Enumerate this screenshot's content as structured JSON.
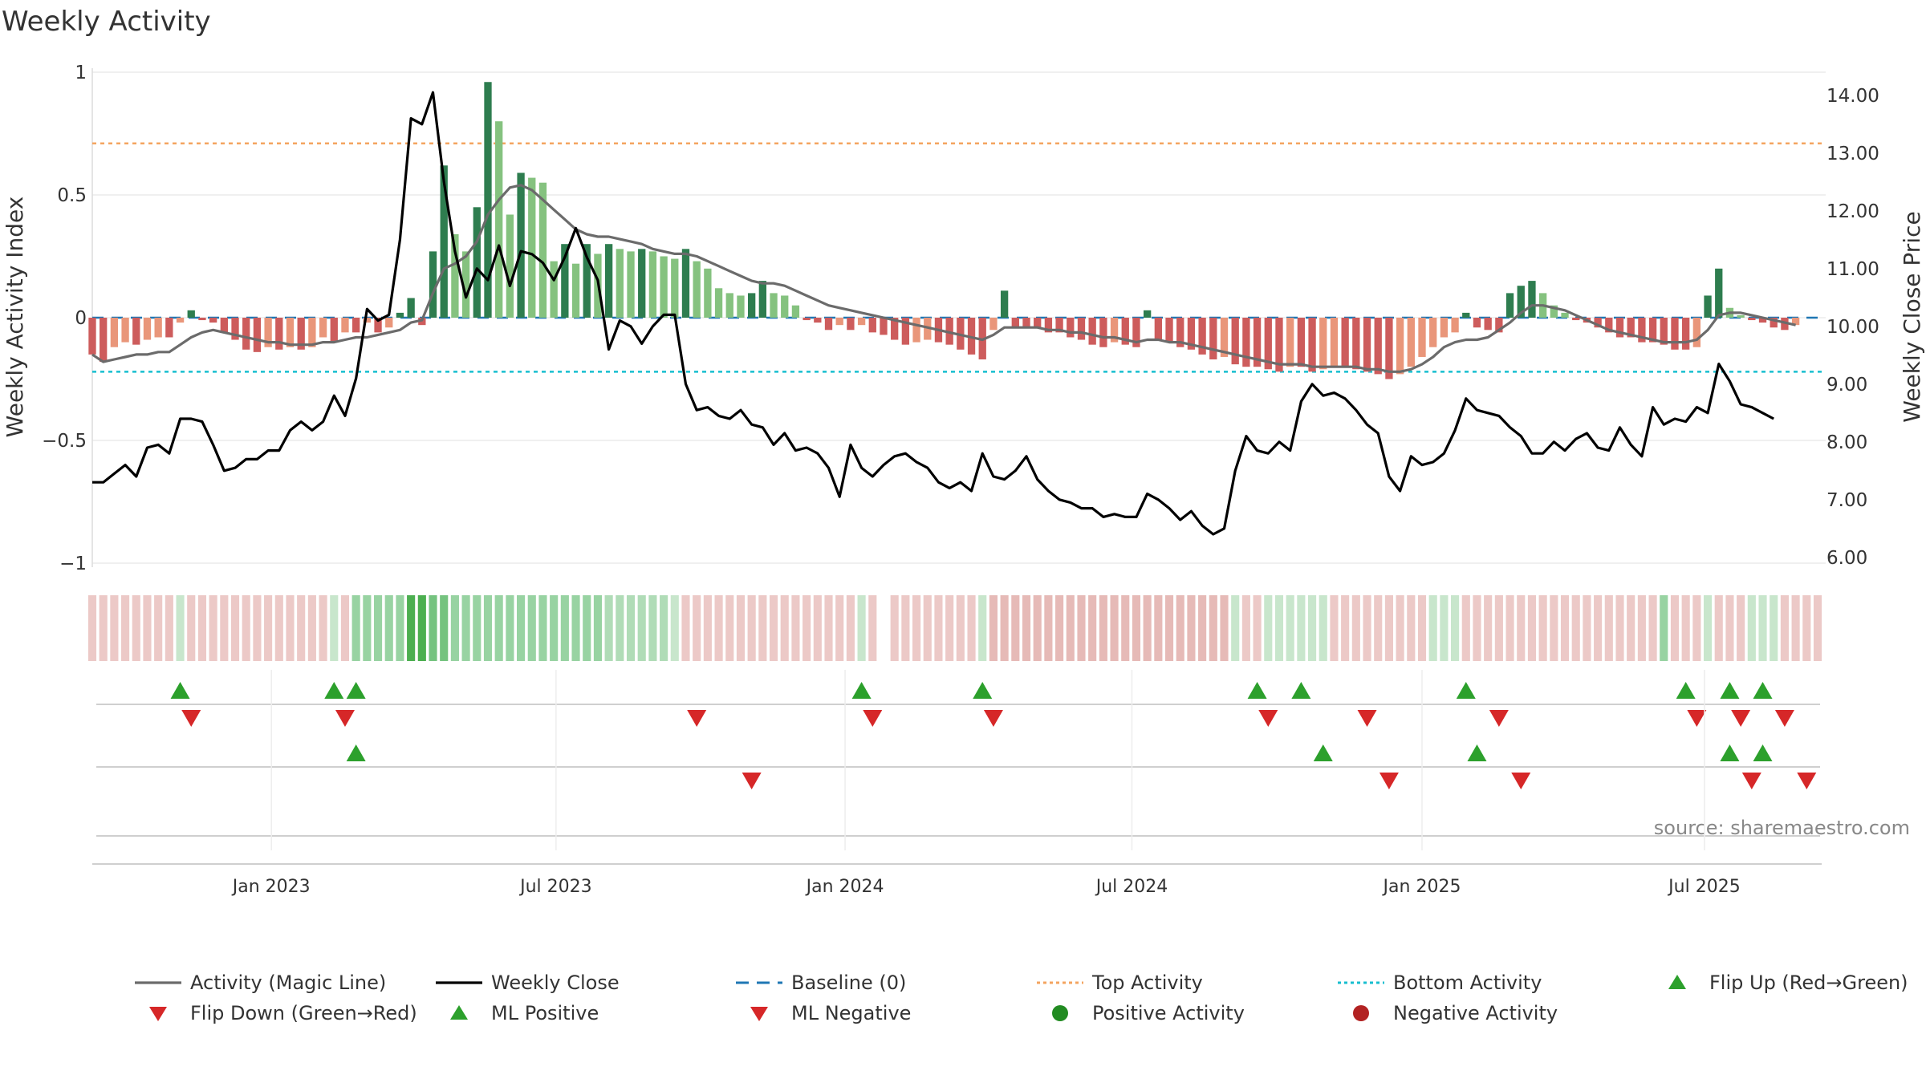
{
  "chart_data": {
    "type": "bar",
    "title": "Weekly Activity",
    "ylabel_left": "Weekly Activity Index",
    "ylabel_right": "Weekly Close Price",
    "xlabel": "",
    "ylim_left": [
      -1.0,
      1.0
    ],
    "ylim_right": [
      5.9,
      14.4
    ],
    "y_ticks_left": [
      {
        "value": 1,
        "label": "1"
      },
      {
        "value": 0.5,
        "label": "0.5"
      },
      {
        "value": 0,
        "label": "0"
      },
      {
        "value": -0.5,
        "label": "−0.5"
      },
      {
        "value": -1,
        "label": "−1"
      }
    ],
    "y_ticks_right": [
      {
        "value": 14,
        "label": "14.00"
      },
      {
        "value": 13,
        "label": "13.00"
      },
      {
        "value": 12,
        "label": "12.00"
      },
      {
        "value": 11,
        "label": "11.00"
      },
      {
        "value": 10,
        "label": "10.00"
      },
      {
        "value": 9,
        "label": "9.00"
      },
      {
        "value": 8,
        "label": "8.00"
      },
      {
        "value": 7,
        "label": "7.00"
      },
      {
        "value": 6,
        "label": "6.00"
      }
    ],
    "x_ticks": [
      {
        "week": 16.3,
        "label": "Jan 2023"
      },
      {
        "week": 42.2,
        "label": "Jul 2023"
      },
      {
        "week": 68.5,
        "label": "Jan 2024"
      },
      {
        "week": 94.6,
        "label": "Jul 2024"
      },
      {
        "week": 121,
        "label": "Jan 2025"
      },
      {
        "week": 146.7,
        "label": "Jul 2025"
      }
    ],
    "weeks": 158,
    "top_activity": 0.71,
    "bottom_activity": -0.22,
    "baseline": 0,
    "activity_values": [
      -0.15,
      -0.18,
      -0.12,
      -0.1,
      -0.11,
      -0.09,
      -0.08,
      -0.08,
      -0.02,
      0.03,
      -0.01,
      -0.02,
      -0.06,
      -0.09,
      -0.13,
      -0.14,
      -0.12,
      -0.13,
      -0.12,
      -0.13,
      -0.12,
      -0.08,
      -0.1,
      -0.06,
      -0.06,
      -0.02,
      -0.06,
      -0.04,
      0.02,
      0.08,
      -0.03,
      0.27,
      0.62,
      0.34,
      0.27,
      0.45,
      0.96,
      0.8,
      0.42,
      0.59,
      0.57,
      0.55,
      0.23,
      0.3,
      0.22,
      0.3,
      0.26,
      0.3,
      0.28,
      0.27,
      0.28,
      0.27,
      0.25,
      0.24,
      0.28,
      0.23,
      0.2,
      0.12,
      0.1,
      0.09,
      0.1,
      0.15,
      0.1,
      0.09,
      0.05,
      -0.01,
      -0.02,
      -0.05,
      -0.03,
      -0.05,
      -0.03,
      -0.06,
      -0.07,
      -0.09,
      -0.11,
      -0.1,
      -0.09,
      -0.1,
      -0.11,
      -0.13,
      -0.15,
      -0.17,
      -0.05,
      0.11,
      -0.04,
      -0.04,
      -0.04,
      -0.06,
      -0.06,
      -0.08,
      -0.09,
      -0.11,
      -0.12,
      -0.1,
      -0.11,
      -0.12,
      0.03,
      -0.09,
      -0.1,
      -0.12,
      -0.13,
      -0.15,
      -0.17,
      -0.16,
      -0.19,
      -0.2,
      -0.2,
      -0.21,
      -0.22,
      -0.2,
      -0.2,
      -0.22,
      -0.21,
      -0.2,
      -0.2,
      -0.21,
      -0.22,
      -0.23,
      -0.25,
      -0.23,
      -0.2,
      -0.16,
      -0.12,
      -0.08,
      -0.06,
      0.02,
      -0.04,
      -0.05,
      -0.06,
      0.1,
      0.13,
      0.15,
      0.1,
      0.05,
      0.02,
      -0.01,
      -0.02,
      -0.04,
      -0.06,
      -0.08,
      -0.08,
      -0.1,
      -0.1,
      -0.11,
      -0.13,
      -0.13,
      -0.12,
      0.09,
      0.2,
      0.04,
      0.01,
      -0.01,
      -0.02,
      -0.04,
      -0.05,
      -0.03
    ],
    "magic_line_values": [
      -0.15,
      -0.18,
      -0.17,
      -0.16,
      -0.15,
      -0.15,
      -0.14,
      -0.14,
      -0.11,
      -0.08,
      -0.06,
      -0.05,
      -0.06,
      -0.07,
      -0.08,
      -0.09,
      -0.1,
      -0.1,
      -0.11,
      -0.11,
      -0.11,
      -0.1,
      -0.1,
      -0.09,
      -0.08,
      -0.08,
      -0.07,
      -0.06,
      -0.05,
      -0.02,
      -0.01,
      0.1,
      0.2,
      0.22,
      0.25,
      0.31,
      0.42,
      0.48,
      0.53,
      0.54,
      0.52,
      0.48,
      0.44,
      0.4,
      0.36,
      0.34,
      0.33,
      0.33,
      0.32,
      0.31,
      0.3,
      0.28,
      0.27,
      0.26,
      0.26,
      0.25,
      0.23,
      0.21,
      0.19,
      0.17,
      0.15,
      0.14,
      0.14,
      0.13,
      0.11,
      0.09,
      0.07,
      0.05,
      0.04,
      0.03,
      0.02,
      0.01,
      0.0,
      -0.01,
      -0.02,
      -0.03,
      -0.04,
      -0.05,
      -0.06,
      -0.07,
      -0.08,
      -0.09,
      -0.07,
      -0.04,
      -0.04,
      -0.04,
      -0.04,
      -0.05,
      -0.05,
      -0.06,
      -0.06,
      -0.07,
      -0.08,
      -0.08,
      -0.09,
      -0.1,
      -0.09,
      -0.09,
      -0.1,
      -0.1,
      -0.11,
      -0.12,
      -0.13,
      -0.14,
      -0.15,
      -0.16,
      -0.17,
      -0.18,
      -0.19,
      -0.19,
      -0.19,
      -0.2,
      -0.2,
      -0.2,
      -0.2,
      -0.2,
      -0.21,
      -0.21,
      -0.22,
      -0.22,
      -0.21,
      -0.19,
      -0.16,
      -0.12,
      -0.1,
      -0.09,
      -0.09,
      -0.08,
      -0.05,
      -0.02,
      0.02,
      0.05,
      0.05,
      0.04,
      0.03,
      0.01,
      -0.01,
      -0.03,
      -0.05,
      -0.06,
      -0.07,
      -0.08,
      -0.09,
      -0.1,
      -0.1,
      -0.1,
      -0.09,
      -0.05,
      0.01,
      0.02,
      0.02,
      0.01,
      0.0,
      -0.01,
      -0.02,
      -0.03
    ],
    "weekly_close_values": [
      7.3,
      7.3,
      7.45,
      7.6,
      7.4,
      7.9,
      7.95,
      7.8,
      8.4,
      8.4,
      8.35,
      7.95,
      7.5,
      7.55,
      7.7,
      7.7,
      7.85,
      7.85,
      8.2,
      8.35,
      8.2,
      8.35,
      8.8,
      8.45,
      9.1,
      10.3,
      10.1,
      10.2,
      11.5,
      13.6,
      13.5,
      14.05,
      12.5,
      11.3,
      10.5,
      11.0,
      10.8,
      11.4,
      10.7,
      11.3,
      11.25,
      11.1,
      10.8,
      11.2,
      11.7,
      11.2,
      10.8,
      9.6,
      10.1,
      10.0,
      9.7,
      10.0,
      10.2,
      10.2,
      9.0,
      8.55,
      8.6,
      8.45,
      8.4,
      8.55,
      8.3,
      8.25,
      7.95,
      8.15,
      7.85,
      7.9,
      7.8,
      7.55,
      7.05,
      7.95,
      7.55,
      7.4,
      7.6,
      7.75,
      7.8,
      7.65,
      7.55,
      7.3,
      7.2,
      7.3,
      7.15,
      7.8,
      7.4,
      7.35,
      7.5,
      7.75,
      7.35,
      7.15,
      7.0,
      6.95,
      6.85,
      6.85,
      6.7,
      6.75,
      6.7,
      6.7,
      7.1,
      7.0,
      6.85,
      6.65,
      6.8,
      6.55,
      6.4,
      6.5,
      7.5,
      8.1,
      7.85,
      7.8,
      8.0,
      7.85,
      8.7,
      9.0,
      8.8,
      8.85,
      8.75,
      8.55,
      8.3,
      8.15,
      7.4,
      7.15,
      7.75,
      7.6,
      7.65,
      7.8,
      8.2,
      8.75,
      8.55,
      8.5,
      8.45,
      8.25,
      8.1,
      7.8,
      7.8,
      8.0,
      7.85,
      8.05,
      8.15,
      7.9,
      7.85,
      8.25,
      7.95,
      7.75,
      8.6,
      8.3,
      8.4,
      8.35,
      8.6,
      8.5,
      9.35,
      9.05,
      8.65,
      8.6,
      8.5,
      8.4
    ],
    "ribbon_colors": [
      "#ecc9c7",
      "#ecc9c7",
      "#ecc9c7",
      "#ecc9c7",
      "#ecc9c7",
      "#ecc9c7",
      "#ecc9c7",
      "#ecc9c7",
      "#c8e6cc",
      "#ecc9c7",
      "#ecc9c7",
      "#ecc9c7",
      "#ecc9c7",
      "#ecc9c7",
      "#ecc9c7",
      "#ecc9c7",
      "#ecc9c7",
      "#ecc9c7",
      "#ecc9c7",
      "#ecc9c7",
      "#ecc9c7",
      "#ecc9c7",
      "#c8e6cc",
      "#ecc9c7",
      "#98d3a2",
      "#98d3a2",
      "#98d3a2",
      "#98d3a2",
      "#98d3a2",
      "#4caf50",
      "#4caf50",
      "#75c37f",
      "#75c37f",
      "#98d3a2",
      "#98d3a2",
      "#98d3a2",
      "#98d3a2",
      "#98d3a2",
      "#98d3a2",
      "#98d3a2",
      "#98d3a2",
      "#98d3a2",
      "#98d3a2",
      "#98d3a2",
      "#98d3a2",
      "#98d3a2",
      "#98d3a2",
      "#b0dcb7",
      "#b0dcb7",
      "#b0dcb7",
      "#b0dcb7",
      "#b0dcb7",
      "#b0dcb7",
      "#c8e6cc",
      "#ecc9c7",
      "#ecc9c7",
      "#ecc9c7",
      "#ecc9c7",
      "#ecc9c7",
      "#ecc9c7",
      "#ecc9c7",
      "#ecc9c7",
      "#ecc9c7",
      "#ecc9c7",
      "#ecc9c7",
      "#ecc9c7",
      "#ecc9c7",
      "#ecc9c7",
      "#ecc9c7",
      "#ecc9c7",
      "#c8e6cc",
      "#ecc9c7",
      "#ffffff",
      "#ecc9c7",
      "#ecc9c7",
      "#ecc9c7",
      "#ecc9c7",
      "#ecc9c7",
      "#ecc9c7",
      "#ecc9c7",
      "#ecc9c7",
      "#c8e6cc",
      "#e6bab7",
      "#e6bab7",
      "#e6bab7",
      "#e6bab7",
      "#e6bab7",
      "#e6bab7",
      "#e6bab7",
      "#e6bab7",
      "#e6bab7",
      "#e6bab7",
      "#e6bab7",
      "#e6bab7",
      "#e6bab7",
      "#e6bab7",
      "#e6bab7",
      "#e6bab7",
      "#e6bab7",
      "#e6bab7",
      "#e6bab7",
      "#e6bab7",
      "#e6bab7",
      "#e6bab7",
      "#c8e6cc",
      "#ecc9c7",
      "#ecc9c7",
      "#c8e6cc",
      "#c8e6cc",
      "#c8e6cc",
      "#c8e6cc",
      "#c8e6cc",
      "#c8e6cc",
      "#ecc9c7",
      "#ecc9c7",
      "#ecc9c7",
      "#ecc9c7",
      "#ecc9c7",
      "#ecc9c7",
      "#ecc9c7",
      "#ecc9c7",
      "#ecc9c7",
      "#c8e6cc",
      "#c8e6cc",
      "#c8e6cc",
      "#ecc9c7",
      "#ecc9c7",
      "#ecc9c7",
      "#ecc9c7",
      "#ecc9c7",
      "#ecc9c7",
      "#ecc9c7",
      "#ecc9c7",
      "#ecc9c7",
      "#ecc9c7",
      "#ecc9c7",
      "#ecc9c7",
      "#ecc9c7",
      "#ecc9c7",
      "#ecc9c7",
      "#ecc9c7",
      "#ecc9c7",
      "#ecc9c7",
      "#98d3a2",
      "#ecc9c7",
      "#ecc9c7",
      "#ecc9c7",
      "#c8e6cc",
      "#ecc9c7",
      "#ecc9c7",
      "#ecc9c7",
      "#c8e6cc",
      "#c8e6cc",
      "#c8e6cc",
      "#ecc9c7",
      "#ecc9c7",
      "#ecc9c7",
      "#ecc9c7"
    ],
    "flip_up_weeks": [
      8,
      22,
      24,
      70,
      81,
      106,
      110,
      125,
      145,
      149,
      152
    ],
    "flip_down_weeks": [
      9,
      23,
      55,
      71,
      82,
      107,
      116,
      128,
      146,
      150,
      154
    ],
    "ml_positive_weeks": [
      24,
      112,
      126,
      149,
      152
    ],
    "ml_negative_weeks": [
      60,
      118,
      130,
      151,
      156
    ],
    "legend": [
      {
        "key": "activity-magic-line",
        "label": "Activity (Magic Line)",
        "symbol": "line",
        "color": "#6b6b6b"
      },
      {
        "key": "weekly-close",
        "label": "Weekly Close",
        "symbol": "line",
        "color": "#000000"
      },
      {
        "key": "baseline",
        "label": "Baseline (0)",
        "symbol": "dash",
        "color": "#1f77b4"
      },
      {
        "key": "top-activity",
        "label": "Top Activity",
        "symbol": "dot-line",
        "color": "#f4a460"
      },
      {
        "key": "bottom-activity",
        "label": "Bottom Activity",
        "symbol": "dot-line",
        "color": "#17becf"
      },
      {
        "key": "flip-up",
        "label": "Flip Up (Red→Green)",
        "symbol": "triangle-up",
        "color": "#2ca02c"
      },
      {
        "key": "flip-down",
        "label": "Flip Down (Green→Red)",
        "symbol": "triangle-down",
        "color": "#d62728"
      },
      {
        "key": "ml-positive",
        "label": "ML Positive",
        "symbol": "triangle-up",
        "color": "#2ca02c"
      },
      {
        "key": "ml-negative",
        "label": "ML Negative",
        "symbol": "triangle-down",
        "color": "#d62728"
      },
      {
        "key": "positive-activity",
        "label": "Positive Activity",
        "symbol": "circle",
        "color": "#228b22"
      },
      {
        "key": "negative-activity",
        "label": "Negative Activity",
        "symbol": "circle",
        "color": "#b22222"
      }
    ],
    "colors": {
      "positive_strong": "#2e7d4f",
      "positive_light": "#85c27f",
      "negative_strong": "#cd5c5c",
      "negative_light": "#e9967a",
      "magic_line": "#6b6b6b",
      "close_line": "#000000",
      "baseline": "#1f77b4",
      "top_line": "#f4a460",
      "bottom_line": "#17becf",
      "flip_up": "#2ca02c",
      "flip_down": "#d62728"
    },
    "source": "source: sharemaestro.com"
  }
}
